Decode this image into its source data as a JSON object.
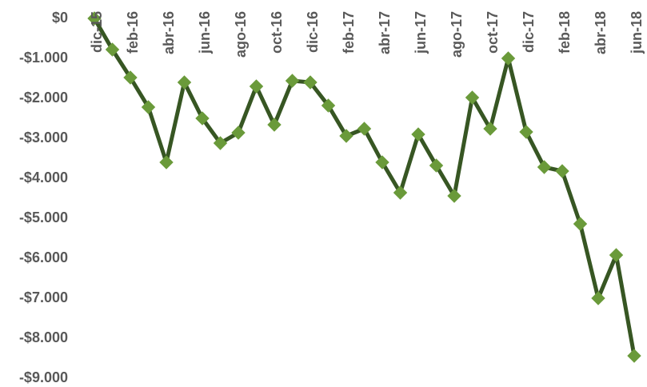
{
  "chart_data": {
    "type": "line",
    "categories": [
      "dic-15",
      null,
      "feb-16",
      null,
      "abr-16",
      null,
      "jun-16",
      null,
      "ago-16",
      null,
      "oct-16",
      null,
      "dic-16",
      null,
      "feb-17",
      null,
      "abr-17",
      null,
      "jun-17",
      null,
      "ago-17",
      null,
      "oct-17",
      null,
      "dic-17",
      null,
      "feb-18",
      null,
      "abr-18",
      null,
      "jun-18"
    ],
    "series": [
      {
        "color": "#375623",
        "marker_color": "#6a9a3a",
        "values": [
          0,
          -780,
          -1480,
          -2220,
          -3600,
          -1600,
          -2500,
          -3120,
          -2860,
          -1700,
          -2660,
          -1560,
          -1600,
          -2180,
          -2940,
          -2760,
          -3600,
          -4360,
          -2900,
          -3680,
          -4440,
          -1980,
          -2760,
          -1000,
          -2840,
          -3720,
          -3820,
          -5140,
          -7000,
          -5920,
          -8440
        ]
      }
    ],
    "ylim": [
      -9000,
      0
    ],
    "yticks": [
      {
        "value": 0,
        "label": "$0"
      },
      {
        "value": -1000,
        "label": "-$1.000"
      },
      {
        "value": -2000,
        "label": "-$2.000"
      },
      {
        "value": -3000,
        "label": "-$3.000"
      },
      {
        "value": -4000,
        "label": "-$4.000"
      },
      {
        "value": -5000,
        "label": "-$5.000"
      },
      {
        "value": -6000,
        "label": "-$6.000"
      },
      {
        "value": -7000,
        "label": "-$7.000"
      },
      {
        "value": -8000,
        "label": "-$8.000"
      },
      {
        "value": -9000,
        "label": "-$9.000"
      }
    ],
    "grid": false
  }
}
